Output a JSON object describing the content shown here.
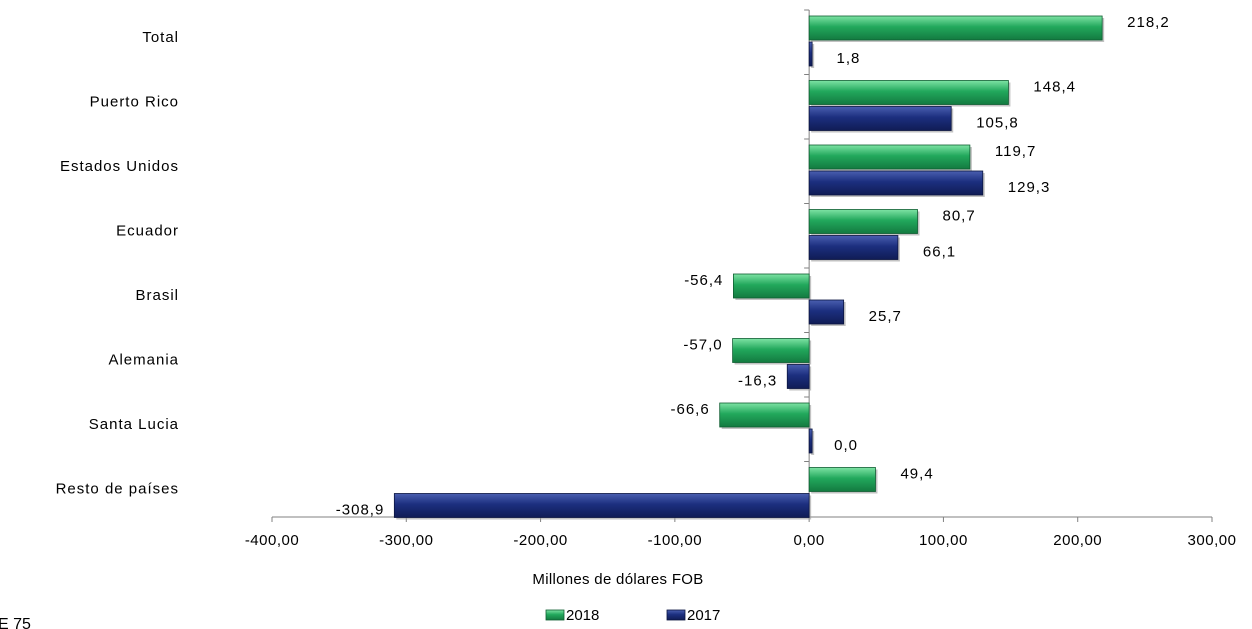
{
  "chart_data": {
    "type": "bar",
    "orientation": "horizontal",
    "categories": [
      "Total",
      "Puerto Rico",
      "Estados Unidos",
      "Ecuador",
      "Brasil",
      "Alemania",
      "Santa Lucia",
      "Resto de países"
    ],
    "series": [
      {
        "name": "2018",
        "color": "#1fa05a",
        "values": [
          218.2,
          148.4,
          119.7,
          80.7,
          -56.4,
          -57.0,
          -66.6,
          49.4
        ],
        "labels": [
          "218,2",
          "148,4",
          "119,7",
          "80,7",
          "-56,4",
          "-57,0",
          "-66,6",
          "49,4"
        ]
      },
      {
        "name": "2017",
        "color": "#1b2e7a",
        "values": [
          1.8,
          105.8,
          129.3,
          66.1,
          25.7,
          -16.3,
          0.0,
          -308.9
        ],
        "labels": [
          "1,8",
          "105,8",
          "129,3",
          "66,1",
          "25,7",
          "-16,3",
          "0,0",
          "-308,9"
        ]
      }
    ],
    "xlabel": "Millones de dólares FOB",
    "xlim": [
      -400,
      300
    ],
    "xticks": [
      -400,
      -300,
      -200,
      -100,
      0,
      100,
      200,
      300
    ],
    "xtick_labels": [
      "-400,00",
      "-300,00",
      "-200,00",
      "-100,00",
      "0,00",
      "100,00",
      "200,00",
      "300,00"
    ],
    "grid": false,
    "legend_position": "bottom"
  },
  "footer_text": "E 75"
}
